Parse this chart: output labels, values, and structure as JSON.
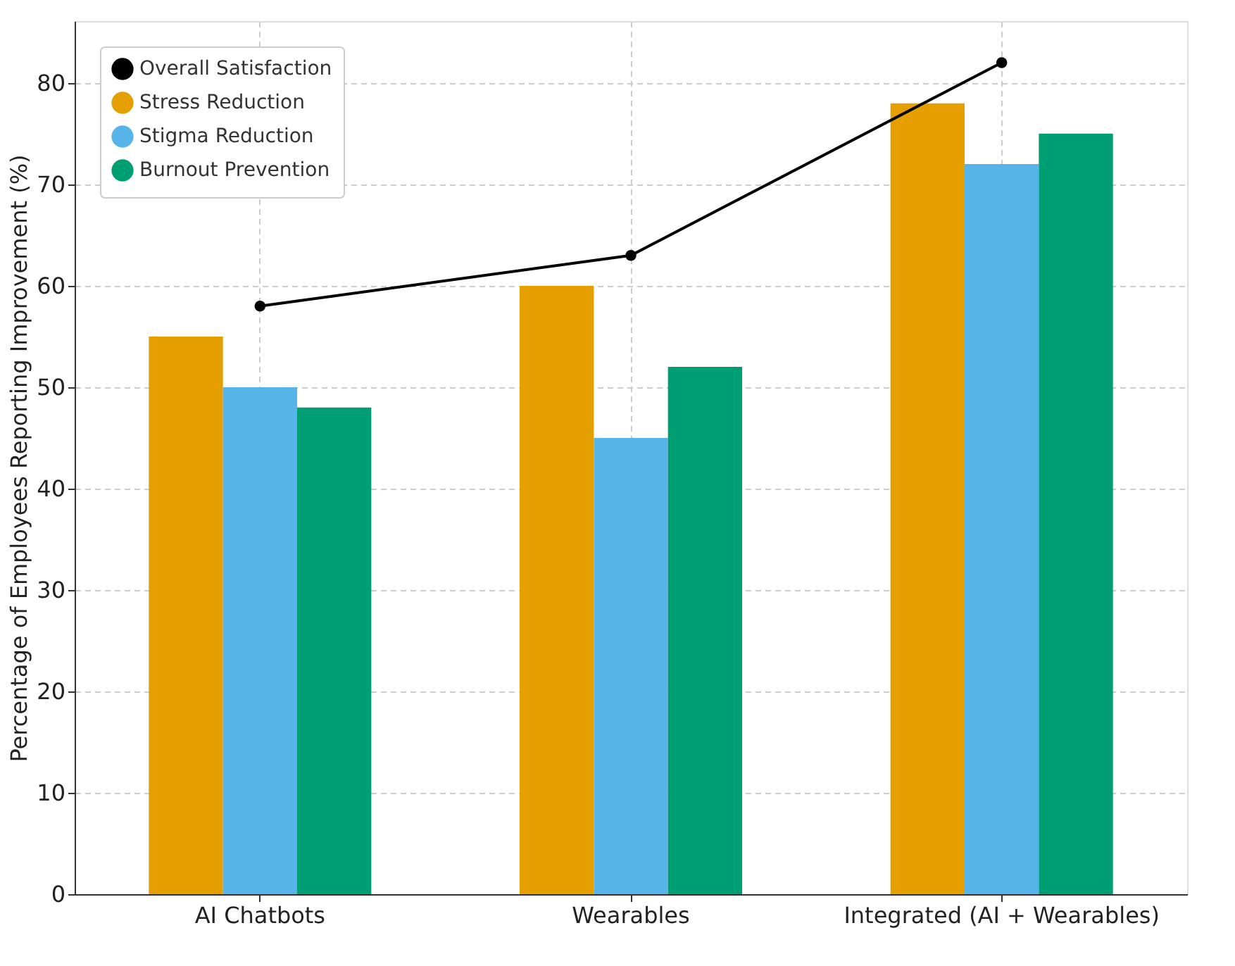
{
  "chart_data": {
    "type": "bar",
    "categories": [
      "AI Chatbots",
      "Wearables",
      "Integrated (AI + Wearables)"
    ],
    "ylabel": "Percentage of Employees Reporting Improvement (%)",
    "ylim": [
      0,
      86.1
    ],
    "yticks": [
      0,
      10,
      20,
      30,
      40,
      50,
      60,
      70,
      80
    ],
    "grid": true,
    "legend": "top left",
    "series": [
      {
        "name": "Overall Satisfaction",
        "type": "line",
        "color": "#000000",
        "marker": "circle",
        "values": [
          58,
          63,
          82
        ]
      },
      {
        "name": "Stress Reduction",
        "color": "#E69F00",
        "values": [
          55,
          60,
          78
        ]
      },
      {
        "name": "Stigma Reduction",
        "color": "#56B4E9",
        "values": [
          50,
          45,
          72
        ]
      },
      {
        "name": "Burnout Prevention",
        "color": "#009E73",
        "values": [
          48,
          52,
          75
        ]
      }
    ]
  }
}
